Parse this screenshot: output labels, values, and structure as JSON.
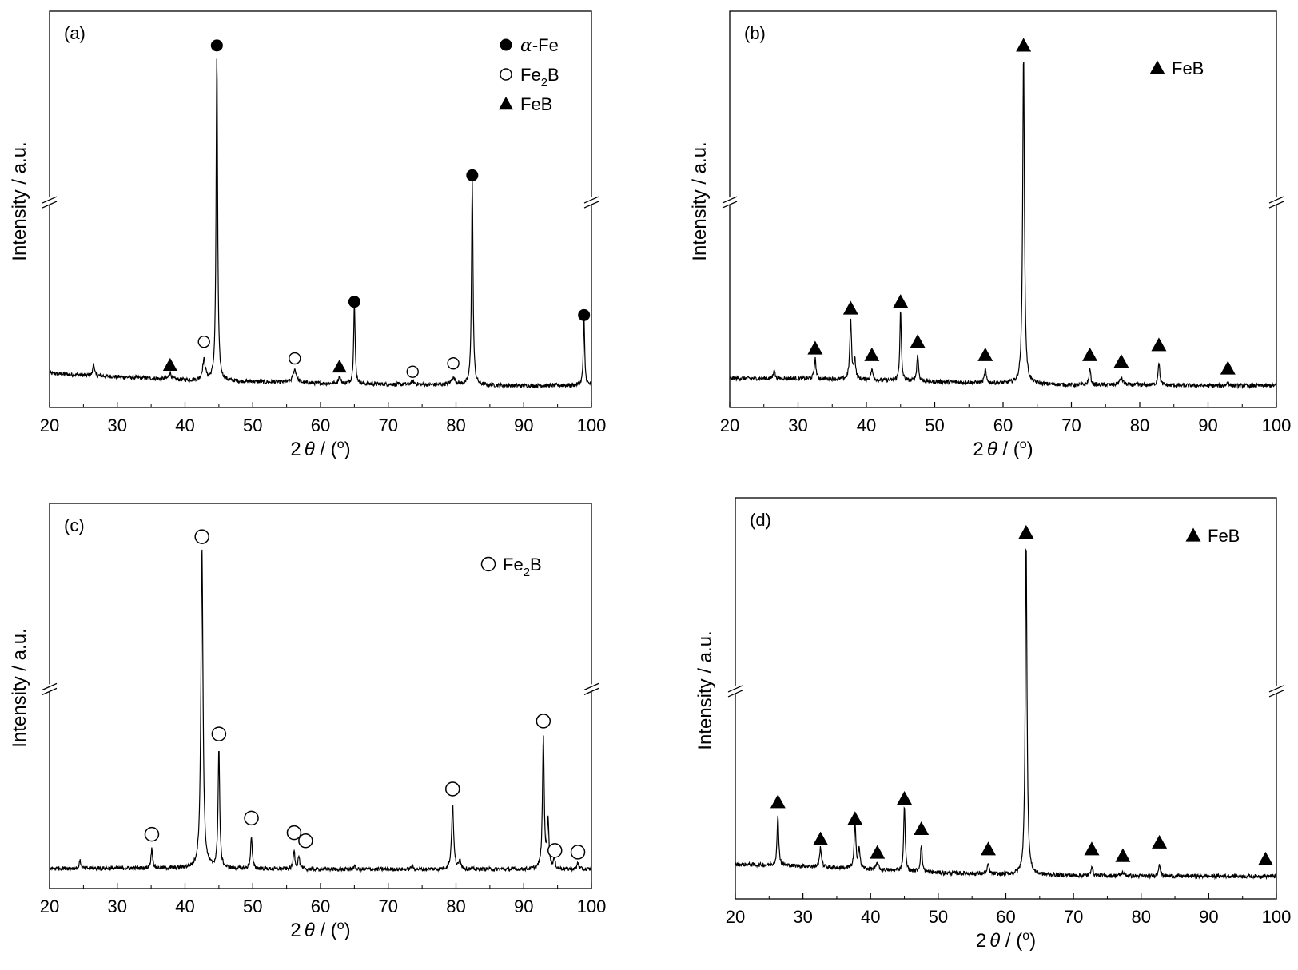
{
  "chart_data": [
    {
      "type": "line",
      "panel_label": "(a)",
      "xlabel_prefix": "2",
      "xlabel_symbol": "θ",
      "xlabel_suffix": " / (",
      "xlabel_unit_sup": "o",
      "xlabel_close": ")",
      "ylabel": "Intensity / a.u.",
      "xlim": [
        20,
        100
      ],
      "x_ticks": [
        "20",
        "30",
        "40",
        "50",
        "60",
        "70",
        "80",
        "90",
        "100"
      ],
      "y_axis_break": true,
      "legend": [
        {
          "marker": "filled-circle",
          "prefix": "α",
          "text": "-Fe"
        },
        {
          "marker": "open-circle",
          "text": "Fe",
          "sub": "2",
          "after": "B"
        },
        {
          "marker": "filled-triangle",
          "text": "FeB"
        }
      ],
      "series": [
        {
          "baseline": [
            [
              20,
              0.055
            ],
            [
              30,
              0.045
            ],
            [
              40,
              0.035
            ],
            [
              50,
              0.03
            ],
            [
              60,
              0.025
            ],
            [
              70,
              0.022
            ],
            [
              80,
              0.02
            ],
            [
              90,
              0.018
            ],
            [
              100,
              0.02
            ]
          ],
          "peaks": [
            {
              "x": 26.5,
              "h": 0.04,
              "w": 0.12
            },
            {
              "x": 37.8,
              "h": 0.02,
              "w": 0.2
            },
            {
              "x": 42.8,
              "h": 0.06,
              "w": 0.25
            },
            {
              "x": 44.7,
              "h": 1.0,
              "w": 0.13
            },
            {
              "x": 56.2,
              "h": 0.04,
              "w": 0.3
            },
            {
              "x": 62.8,
              "h": 0.02,
              "w": 0.2
            },
            {
              "x": 65.0,
              "h": 0.24,
              "w": 0.13
            },
            {
              "x": 73.6,
              "h": 0.01,
              "w": 0.3
            },
            {
              "x": 79.6,
              "h": 0.02,
              "w": 0.4
            },
            {
              "x": 82.4,
              "h": 0.62,
              "w": 0.13
            },
            {
              "x": 98.9,
              "h": 0.2,
              "w": 0.12
            }
          ]
        }
      ],
      "markers": [
        {
          "type": "filled-circle",
          "x": 44.7,
          "level": 1.04
        },
        {
          "type": "filled-circle",
          "x": 82.4,
          "level": 0.65
        },
        {
          "type": "filled-circle",
          "x": 65.0,
          "level": 0.27
        },
        {
          "type": "filled-circle",
          "x": 98.9,
          "level": 0.23
        },
        {
          "type": "open-circle",
          "x": 42.8,
          "level": 0.15
        },
        {
          "type": "open-circle",
          "x": 56.2,
          "level": 0.1
        },
        {
          "type": "open-circle",
          "x": 73.6,
          "level": 0.06
        },
        {
          "type": "open-circle",
          "x": 79.6,
          "level": 0.085
        },
        {
          "type": "filled-triangle",
          "x": 37.8,
          "level": 0.08
        },
        {
          "type": "filled-triangle",
          "x": 62.8,
          "level": 0.075
        }
      ]
    },
    {
      "type": "line",
      "panel_label": "(b)",
      "xlabel_prefix": "2",
      "xlabel_symbol": "θ",
      "xlabel_suffix": " / (",
      "xlabel_unit_sup": "o",
      "xlabel_close": ")",
      "ylabel": "Intensity / a.u.",
      "xlim": [
        20,
        100
      ],
      "x_ticks": [
        "20",
        "30",
        "40",
        "50",
        "60",
        "70",
        "80",
        "90",
        "100"
      ],
      "y_axis_break": true,
      "legend": [
        {
          "marker": "filled-triangle",
          "text": "FeB"
        }
      ],
      "series": [
        {
          "baseline": [
            [
              20,
              0.04
            ],
            [
              30,
              0.04
            ],
            [
              40,
              0.035
            ],
            [
              50,
              0.03
            ],
            [
              60,
              0.025
            ],
            [
              70,
              0.02
            ],
            [
              80,
              0.02
            ],
            [
              90,
              0.018
            ],
            [
              100,
              0.018
            ]
          ],
          "peaks": [
            {
              "x": 26.5,
              "h": 0.03,
              "w": 0.12
            },
            {
              "x": 32.5,
              "h": 0.06,
              "w": 0.15
            },
            {
              "x": 37.7,
              "h": 0.18,
              "w": 0.15
            },
            {
              "x": 38.3,
              "h": 0.06,
              "w": 0.15
            },
            {
              "x": 40.8,
              "h": 0.03,
              "w": 0.2
            },
            {
              "x": 45.0,
              "h": 0.21,
              "w": 0.13
            },
            {
              "x": 47.5,
              "h": 0.08,
              "w": 0.15
            },
            {
              "x": 57.4,
              "h": 0.04,
              "w": 0.15
            },
            {
              "x": 63.0,
              "h": 1.0,
              "w": 0.15
            },
            {
              "x": 72.7,
              "h": 0.05,
              "w": 0.15
            },
            {
              "x": 77.3,
              "h": 0.02,
              "w": 0.3
            },
            {
              "x": 82.8,
              "h": 0.07,
              "w": 0.15
            },
            {
              "x": 92.9,
              "h": 0.01,
              "w": 0.2
            }
          ]
        }
      ],
      "markers": [
        {
          "type": "filled-triangle",
          "x": 32.5,
          "level": 0.13
        },
        {
          "type": "filled-triangle",
          "x": 37.7,
          "level": 0.25
        },
        {
          "type": "filled-triangle",
          "x": 40.8,
          "level": 0.11
        },
        {
          "type": "filled-triangle",
          "x": 45.0,
          "level": 0.27
        },
        {
          "type": "filled-triangle",
          "x": 47.5,
          "level": 0.15
        },
        {
          "type": "filled-triangle",
          "x": 57.4,
          "level": 0.11
        },
        {
          "type": "filled-triangle",
          "x": 63.0,
          "level": 1.04
        },
        {
          "type": "filled-triangle",
          "x": 72.7,
          "level": 0.11
        },
        {
          "type": "filled-triangle",
          "x": 77.3,
          "level": 0.09
        },
        {
          "type": "filled-triangle",
          "x": 82.8,
          "level": 0.14
        },
        {
          "type": "filled-triangle",
          "x": 92.9,
          "level": 0.07
        }
      ]
    },
    {
      "type": "line",
      "panel_label": "(c)",
      "xlabel_prefix": "2",
      "xlabel_symbol": "θ",
      "xlabel_suffix": " / (",
      "xlabel_unit_sup": "o",
      "xlabel_close": ")",
      "ylabel": "Intensity / a.u.",
      "xlim": [
        20,
        100
      ],
      "x_ticks": [
        "20",
        "30",
        "40",
        "50",
        "60",
        "70",
        "80",
        "90",
        "100"
      ],
      "y_axis_break": true,
      "legend": [
        {
          "marker": "open-circle",
          "text": "Fe",
          "sub": "2",
          "after": "B"
        }
      ],
      "series": [
        {
          "baseline": [
            [
              20,
              0.015
            ],
            [
              40,
              0.015
            ],
            [
              60,
              0.012
            ],
            [
              80,
              0.012
            ],
            [
              100,
              0.012
            ]
          ],
          "peaks": [
            {
              "x": 24.5,
              "h": 0.03,
              "w": 0.1
            },
            {
              "x": 35.1,
              "h": 0.06,
              "w": 0.15
            },
            {
              "x": 42.5,
              "h": 1.0,
              "w": 0.18
            },
            {
              "x": 45.0,
              "h": 0.37,
              "w": 0.14
            },
            {
              "x": 49.8,
              "h": 0.1,
              "w": 0.14
            },
            {
              "x": 56.1,
              "h": 0.06,
              "w": 0.14
            },
            {
              "x": 56.8,
              "h": 0.04,
              "w": 0.14
            },
            {
              "x": 65.0,
              "h": 0.01,
              "w": 0.15
            },
            {
              "x": 73.5,
              "h": 0.01,
              "w": 0.15
            },
            {
              "x": 79.5,
              "h": 0.2,
              "w": 0.18
            },
            {
              "x": 80.6,
              "h": 0.03,
              "w": 0.15
            },
            {
              "x": 92.9,
              "h": 0.41,
              "w": 0.15
            },
            {
              "x": 93.6,
              "h": 0.15,
              "w": 0.15
            },
            {
              "x": 94.5,
              "h": 0.03,
              "w": 0.15
            },
            {
              "x": 98.0,
              "h": 0.02,
              "w": 0.15
            }
          ]
        }
      ],
      "markers": [
        {
          "type": "open-circle",
          "x": 35.1,
          "level": 0.12
        },
        {
          "type": "open-circle",
          "x": 42.5,
          "level": 1.04
        },
        {
          "type": "open-circle",
          "x": 45.0,
          "level": 0.43
        },
        {
          "type": "open-circle",
          "x": 49.8,
          "level": 0.17
        },
        {
          "type": "open-circle",
          "x": 56.1,
          "level": 0.125
        },
        {
          "type": "open-circle",
          "x": 57.8,
          "level": 0.1
        },
        {
          "type": "open-circle",
          "x": 79.5,
          "level": 0.26
        },
        {
          "type": "open-circle",
          "x": 92.9,
          "level": 0.47
        },
        {
          "type": "open-circle",
          "x": 94.6,
          "level": 0.07
        },
        {
          "type": "open-circle",
          "x": 98.0,
          "level": 0.065
        }
      ]
    },
    {
      "type": "line",
      "panel_label": "(d)",
      "xlabel_prefix": "2",
      "xlabel_symbol": "θ",
      "xlabel_suffix": " / (",
      "xlabel_unit_sup": "o",
      "xlabel_close": ")",
      "ylabel": "Intensity / a.u.",
      "xlim": [
        20,
        100
      ],
      "x_ticks": [
        "20",
        "30",
        "40",
        "50",
        "60",
        "70",
        "80",
        "90",
        "100"
      ],
      "y_axis_break": true,
      "legend": [
        {
          "marker": "filled-triangle",
          "text": "FeB"
        }
      ],
      "series": [
        {
          "baseline": [
            [
              20,
              0.055
            ],
            [
              30,
              0.05
            ],
            [
              40,
              0.04
            ],
            [
              50,
              0.03
            ],
            [
              60,
              0.025
            ],
            [
              70,
              0.022
            ],
            [
              80,
              0.02
            ],
            [
              90,
              0.02
            ],
            [
              100,
              0.02
            ]
          ],
          "peaks": [
            {
              "x": 26.3,
              "h": 0.15,
              "w": 0.14
            },
            {
              "x": 32.6,
              "h": 0.06,
              "w": 0.15
            },
            {
              "x": 37.7,
              "h": 0.13,
              "w": 0.15
            },
            {
              "x": 38.3,
              "h": 0.06,
              "w": 0.15
            },
            {
              "x": 41.0,
              "h": 0.02,
              "w": 0.2
            },
            {
              "x": 45.0,
              "h": 0.2,
              "w": 0.13
            },
            {
              "x": 47.5,
              "h": 0.08,
              "w": 0.15
            },
            {
              "x": 57.4,
              "h": 0.03,
              "w": 0.15
            },
            {
              "x": 63.0,
              "h": 1.0,
              "w": 0.15
            },
            {
              "x": 72.7,
              "h": 0.03,
              "w": 0.15
            },
            {
              "x": 77.3,
              "h": 0.01,
              "w": 0.3
            },
            {
              "x": 82.7,
              "h": 0.04,
              "w": 0.15
            }
          ]
        }
      ],
      "markers": [
        {
          "type": "filled-triangle",
          "x": 26.3,
          "level": 0.24
        },
        {
          "type": "filled-triangle",
          "x": 32.6,
          "level": 0.13
        },
        {
          "type": "filled-triangle",
          "x": 37.7,
          "level": 0.19
        },
        {
          "type": "filled-triangle",
          "x": 41.0,
          "level": 0.09
        },
        {
          "type": "filled-triangle",
          "x": 45.0,
          "level": 0.25
        },
        {
          "type": "filled-triangle",
          "x": 47.5,
          "level": 0.16
        },
        {
          "type": "filled-triangle",
          "x": 57.4,
          "level": 0.1
        },
        {
          "type": "filled-triangle",
          "x": 63.0,
          "level": 1.04
        },
        {
          "type": "filled-triangle",
          "x": 72.7,
          "level": 0.1
        },
        {
          "type": "filled-triangle",
          "x": 77.3,
          "level": 0.08
        },
        {
          "type": "filled-triangle",
          "x": 82.7,
          "level": 0.12
        },
        {
          "type": "filled-triangle",
          "x": 98.4,
          "level": 0.07
        }
      ]
    }
  ]
}
